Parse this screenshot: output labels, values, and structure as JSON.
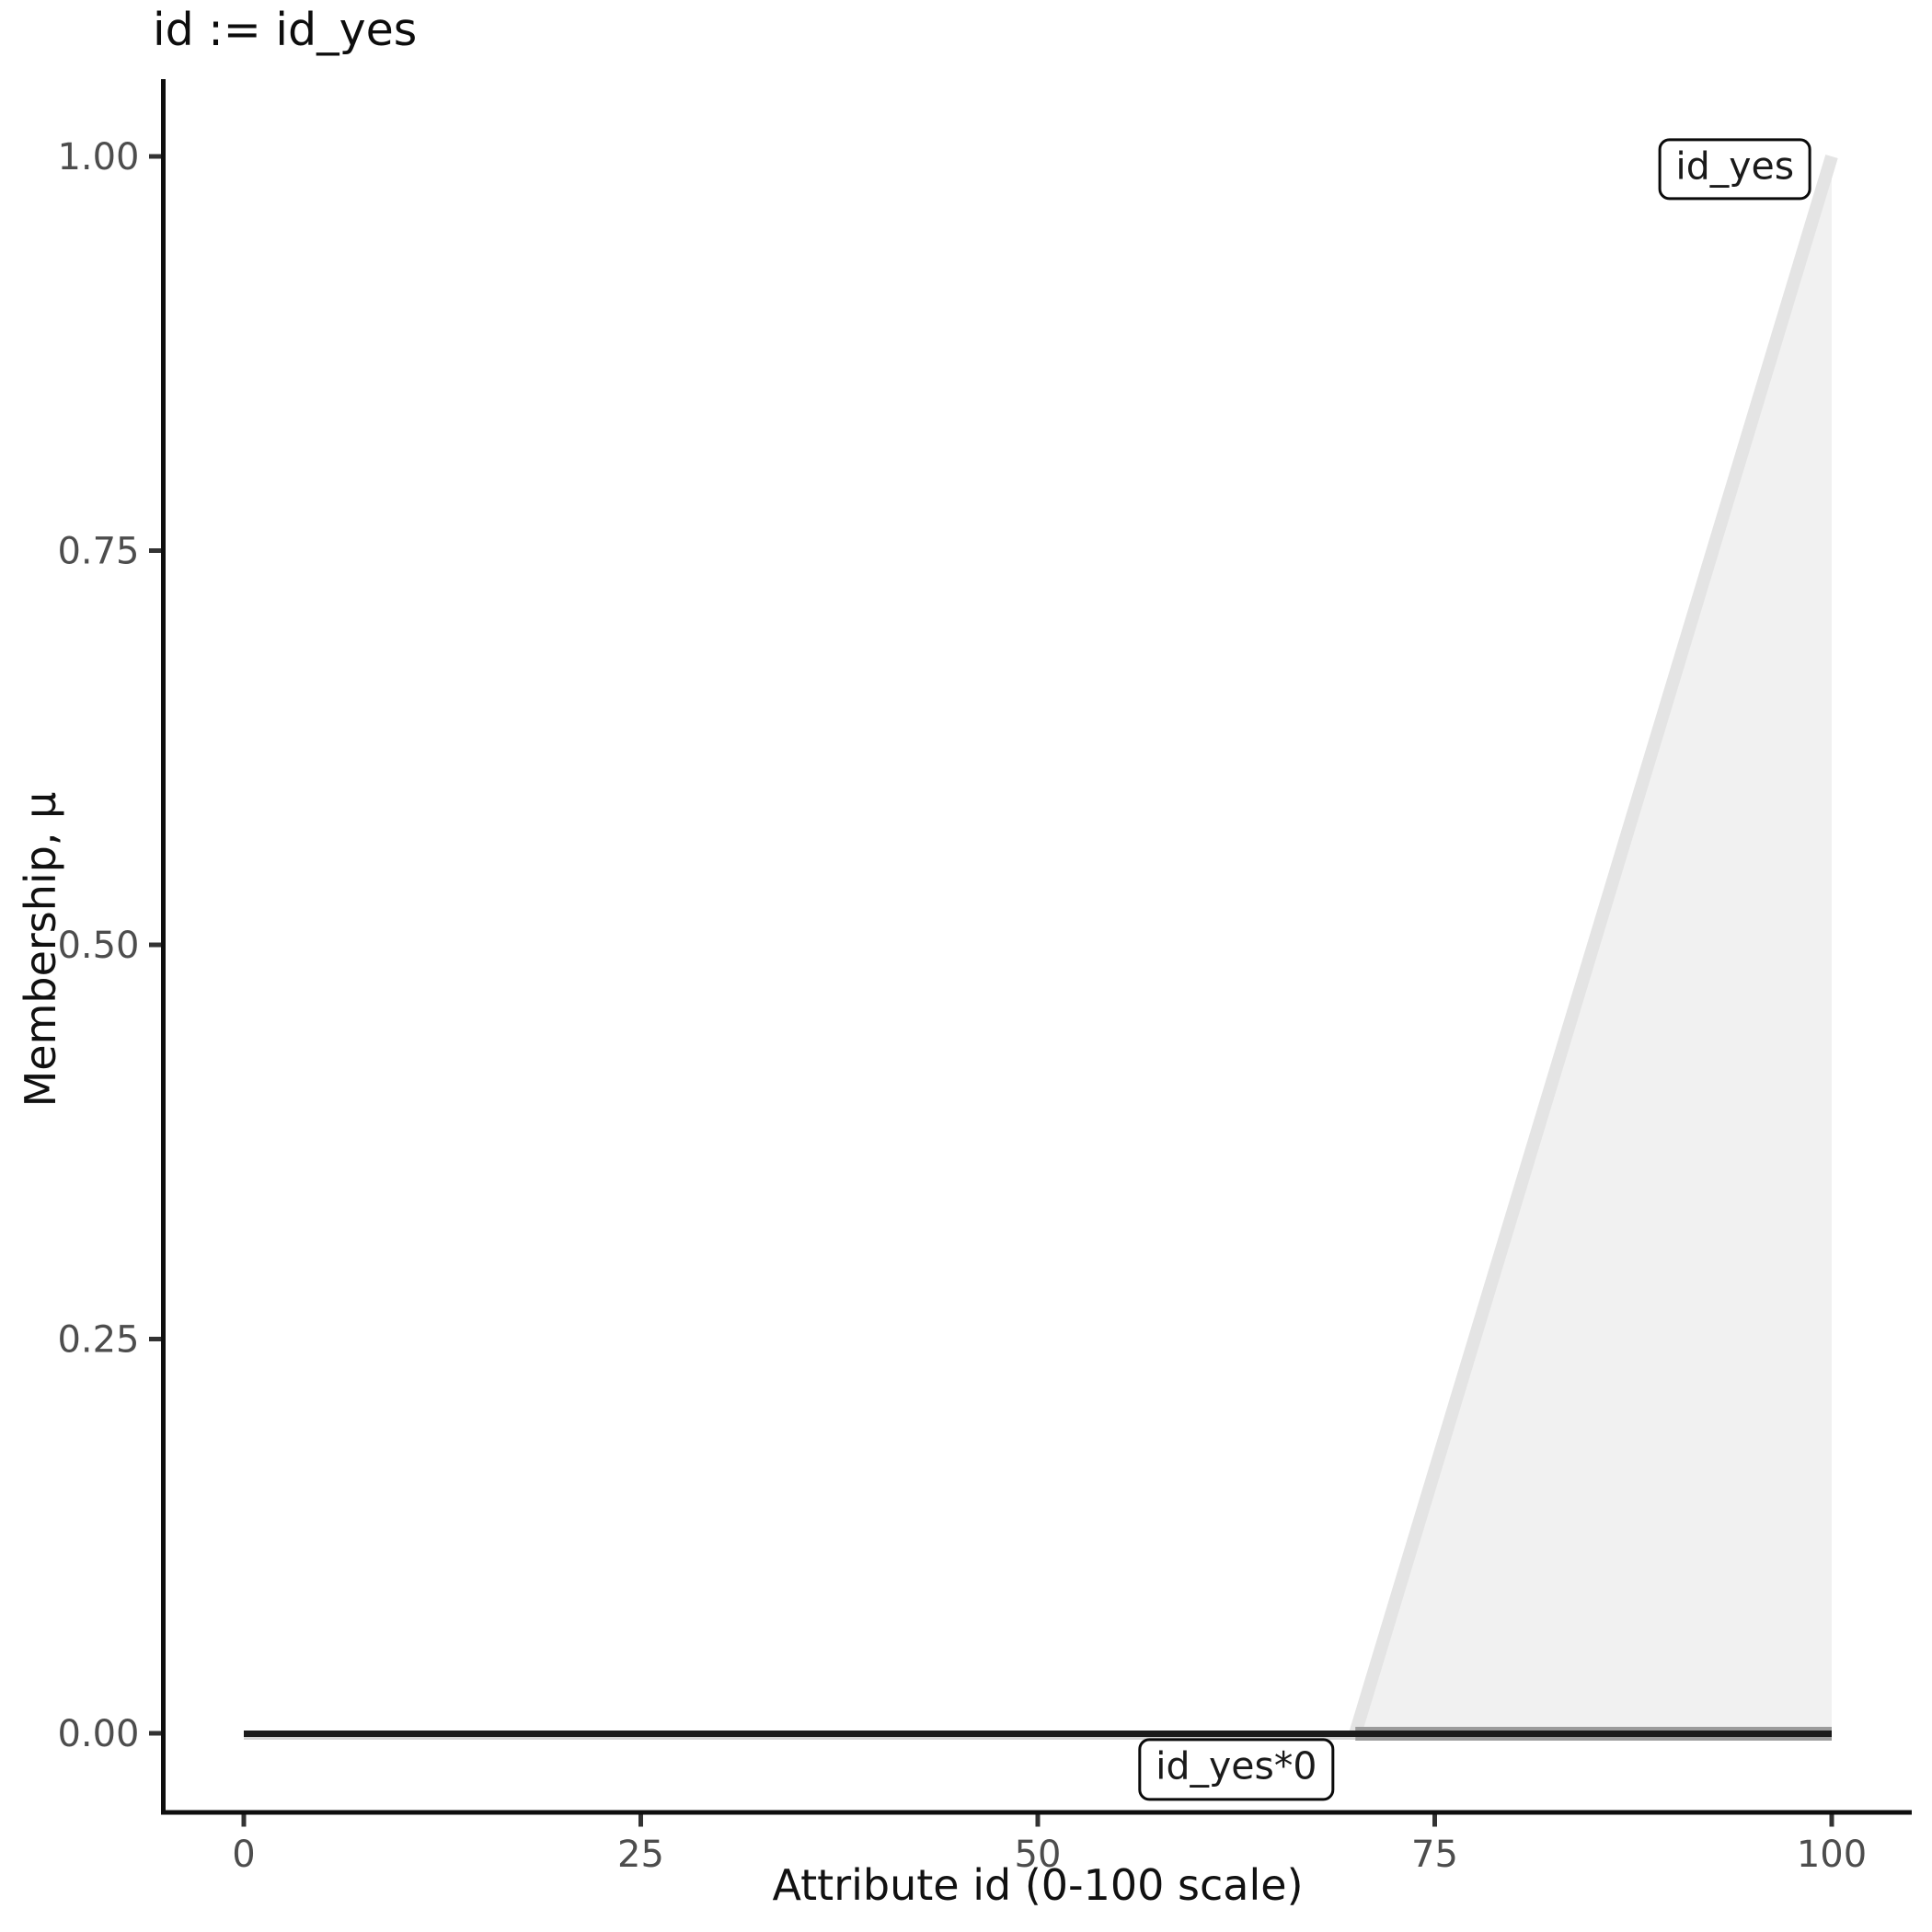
{
  "chart_data": {
    "type": "area",
    "title": "id := id_yes",
    "xlabel": "Attribute id (0-100 scale)",
    "ylabel": "Membership, μ",
    "xlim": [
      0,
      100
    ],
    "ylim": [
      0,
      1
    ],
    "grid": false,
    "legend_position": "none",
    "x_ticks": {
      "values": [
        0,
        25,
        50,
        75,
        100
      ],
      "labels": [
        "0",
        "25",
        "50",
        "75",
        "100"
      ]
    },
    "y_ticks": {
      "values": [
        0,
        0.25,
        0.5,
        0.75,
        1.0
      ],
      "labels": [
        "0.00",
        "0.25",
        "0.50",
        "0.75",
        "1.00"
      ]
    },
    "series": [
      {
        "name": "id_yes",
        "role": "fuzzy-set-membership",
        "x": [
          0,
          70,
          100
        ],
        "y": [
          0,
          0,
          1
        ],
        "line_color": "#e4e4e4",
        "line_width": 14,
        "fill_color": "#f1f1f1",
        "baseline_band_color": "#9b9b9b",
        "baseline_band_width": 15,
        "flat_underline_color": "#d4d4d4",
        "flat_underline_width": 3
      },
      {
        "name": "id_yes*0",
        "role": "scaled-set-membership",
        "x": [
          0,
          100
        ],
        "y": [
          0,
          0
        ],
        "line_color": "#1b1b1b",
        "line_width": 7
      }
    ],
    "annotations": [
      {
        "label": "id_yes",
        "x": 93.9,
        "y": 0.992
      },
      {
        "label": "id_yes*0",
        "x": 62.5,
        "y": -0.023
      }
    ]
  },
  "style": {
    "axis_line_color": "#0f0f0f",
    "tick_mark_color": "#333333",
    "tick_label_color": "#4d4d4d",
    "tick_label_size": 40,
    "background": "#ffffff"
  }
}
